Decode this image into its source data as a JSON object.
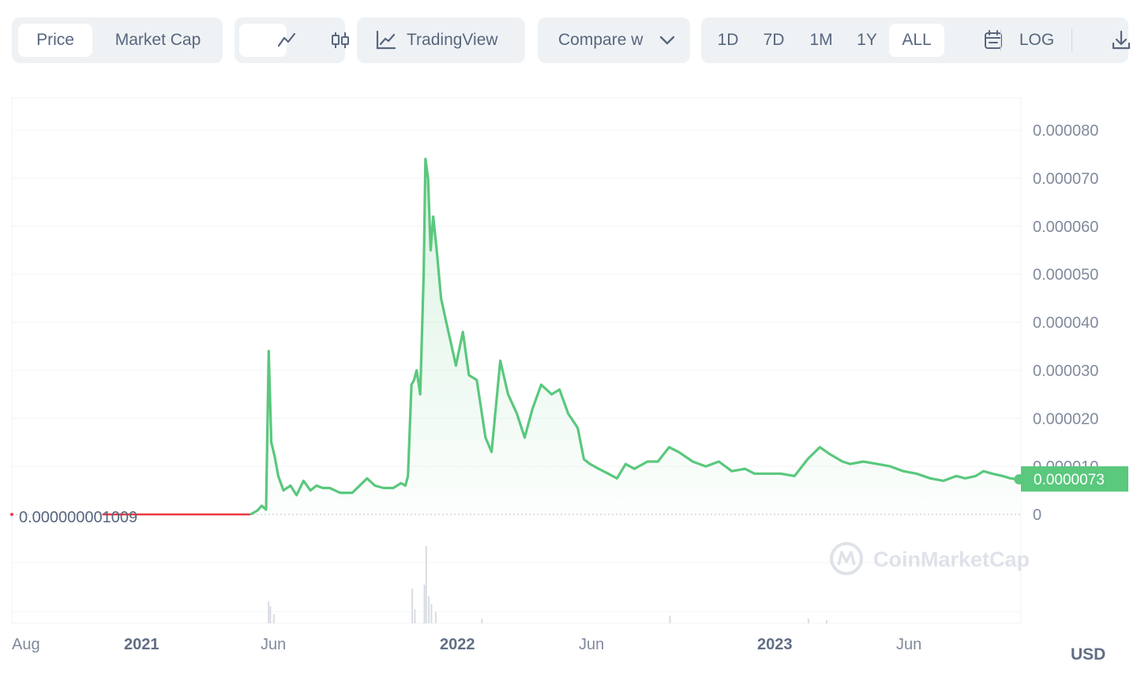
{
  "toolbar": {
    "price_label": "Price",
    "market_cap_label": "Market Cap",
    "tradingview_label": "TradingView",
    "compare_label": "Compare w",
    "ranges": [
      "1D",
      "7D",
      "1M",
      "1Y",
      "ALL"
    ],
    "active_range": "ALL",
    "log_label": "LOG",
    "icons": [
      "line-chart-icon",
      "candlestick-icon",
      "tradingview-icon",
      "chevron-down-icon",
      "calendar-icon",
      "download-icon"
    ]
  },
  "watermark": "CoinMarketCap",
  "currency": "USD",
  "colors": {
    "line": "#5ac87d",
    "early_line": "#ea3943",
    "fill_top": "#dff5e6",
    "label_bg": "#5ac87d",
    "grid": "#f2f4f7",
    "volume": "#d8dce3"
  },
  "chart_data": {
    "type": "line",
    "series": [
      {
        "x": [
          "2020-08-01",
          "2020-11-01",
          "2020-12-01",
          "2021-01-15",
          "2021-03-01",
          "2021-04-10",
          "2021-04-20",
          "2021-04-28",
          "2021-05-03",
          "2021-05-08",
          "2021-05-11",
          "2021-05-14",
          "2021-05-18",
          "2021-05-22",
          "2021-05-28",
          "2021-06-05",
          "2021-06-12",
          "2021-06-20",
          "2021-06-28",
          "2021-07-05",
          "2021-07-12",
          "2021-07-20",
          "2021-08-01",
          "2021-08-15",
          "2021-09-01",
          "2021-09-10",
          "2021-09-20",
          "2021-10-01",
          "2021-10-10",
          "2021-10-15",
          "2021-10-18",
          "2021-10-22",
          "2021-10-25",
          "2021-10-28",
          "2021-11-01",
          "2021-11-05",
          "2021-11-07",
          "2021-11-10",
          "2021-11-13",
          "2021-11-16",
          "2021-11-20",
          "2021-11-25",
          "2021-12-01",
          "2021-12-06",
          "2021-12-12",
          "2021-12-20",
          "2021-12-27",
          "2022-01-05",
          "2022-01-15",
          "2022-01-22",
          "2022-02-01",
          "2022-02-10",
          "2022-02-20",
          "2022-03-01",
          "2022-03-10",
          "2022-03-20",
          "2022-04-01",
          "2022-04-10",
          "2022-04-20",
          "2022-05-01",
          "2022-05-08",
          "2022-05-15",
          "2022-05-25",
          "2022-06-05",
          "2022-06-15",
          "2022-06-25",
          "2022-07-05",
          "2022-07-20",
          "2022-08-01",
          "2022-08-14",
          "2022-08-25",
          "2022-09-10",
          "2022-09-25",
          "2022-10-10",
          "2022-10-25",
          "2022-11-09",
          "2022-11-20",
          "2022-12-05",
          "2022-12-20",
          "2023-01-05",
          "2023-01-20",
          "2023-02-03",
          "2023-02-15",
          "2023-03-01",
          "2023-03-10",
          "2023-03-25",
          "2023-04-10",
          "2023-04-25",
          "2023-05-10",
          "2023-05-25",
          "2023-06-10",
          "2023-06-25",
          "2023-07-10",
          "2023-07-20",
          "2023-08-01",
          "2023-08-10",
          "2023-08-20",
          "2023-09-01",
          "2023-09-10",
          "2023-09-20"
        ],
        "y": [
          0.0,
          0.0,
          0.0,
          0.0,
          0.0,
          0.0,
          0.0,
          8e-07,
          1.8e-06,
          1e-06,
          3.4e-05,
          1.5e-05,
          1.2e-05,
          8e-06,
          5e-06,
          6e-06,
          4e-06,
          7e-06,
          5e-06,
          6e-06,
          5.5e-06,
          5.5e-06,
          4.5e-06,
          4.5e-06,
          7.5e-06,
          6e-06,
          5.5e-06,
          5.5e-06,
          6.5e-06,
          6e-06,
          8e-06,
          2.7e-05,
          2.8e-05,
          3e-05,
          2.5e-05,
          5e-05,
          7.4e-05,
          7e-05,
          5.5e-05,
          6.2e-05,
          5.5e-05,
          4.5e-05,
          4e-05,
          3.6e-05,
          3.1e-05,
          3.8e-05,
          2.9e-05,
          2.8e-05,
          1.6e-05,
          1.3e-05,
          3.2e-05,
          2.5e-05,
          2.1e-05,
          1.6e-05,
          2.2e-05,
          2.7e-05,
          2.5e-05,
          2.6e-05,
          2.1e-05,
          1.8e-05,
          1.15e-05,
          1.05e-05,
          9.5e-06,
          8.5e-06,
          7.5e-06,
          1.05e-05,
          9.5e-06,
          1.1e-05,
          1.1e-05,
          1.4e-05,
          1.3e-05,
          1.1e-05,
          1e-05,
          1.1e-05,
          9e-06,
          9.5e-06,
          8.5e-06,
          8.5e-06,
          8.5e-06,
          8e-06,
          1.15e-05,
          1.4e-05,
          1.25e-05,
          1.1e-05,
          1.05e-05,
          1.1e-05,
          1.05e-05,
          1e-05,
          9e-06,
          8.5e-06,
          7.5e-06,
          7e-06,
          8e-06,
          7.5e-06,
          8e-06,
          9e-06,
          8.5e-06,
          8e-06,
          7.5e-06,
          7.3e-06
        ]
      }
    ],
    "x_tick_labels": [
      "Aug",
      "2021",
      "Jun",
      "2022",
      "Jun",
      "2023",
      "Jun"
    ],
    "bold_x_ticks": [
      "2021",
      "2022",
      "2023"
    ],
    "y_ticks": [
      0,
      1e-05,
      2e-05,
      3e-05,
      4e-05,
      5e-05,
      6e-05,
      7e-05,
      8e-05
    ],
    "y_tick_labels": [
      "0",
      "0.000010",
      "0.000020",
      "0.000030",
      "0.000040",
      "0.000050",
      "0.000060",
      "0.000070",
      "0.000080"
    ],
    "ylim": [
      0,
      8e-05
    ],
    "current_price_label": "0.0000073",
    "start_price_label": "0.000000001009",
    "volume_spikes": [
      {
        "x": "2021-05-10",
        "v": 0.28
      },
      {
        "x": "2021-05-12",
        "v": 0.22
      },
      {
        "x": "2021-05-16",
        "v": 0.12
      },
      {
        "x": "2021-10-22",
        "v": 0.45
      },
      {
        "x": "2021-10-25",
        "v": 0.18
      },
      {
        "x": "2021-11-07",
        "v": 1.0
      },
      {
        "x": "2021-11-05",
        "v": 0.5
      },
      {
        "x": "2021-11-10",
        "v": 0.35
      },
      {
        "x": "2021-11-13",
        "v": 0.25
      },
      {
        "x": "2021-11-18",
        "v": 0.15
      },
      {
        "x": "2022-01-10",
        "v": 0.06
      },
      {
        "x": "2022-08-14",
        "v": 0.1
      },
      {
        "x": "2023-01-20",
        "v": 0.06
      },
      {
        "x": "2023-02-10",
        "v": 0.04
      }
    ],
    "grid": true
  }
}
